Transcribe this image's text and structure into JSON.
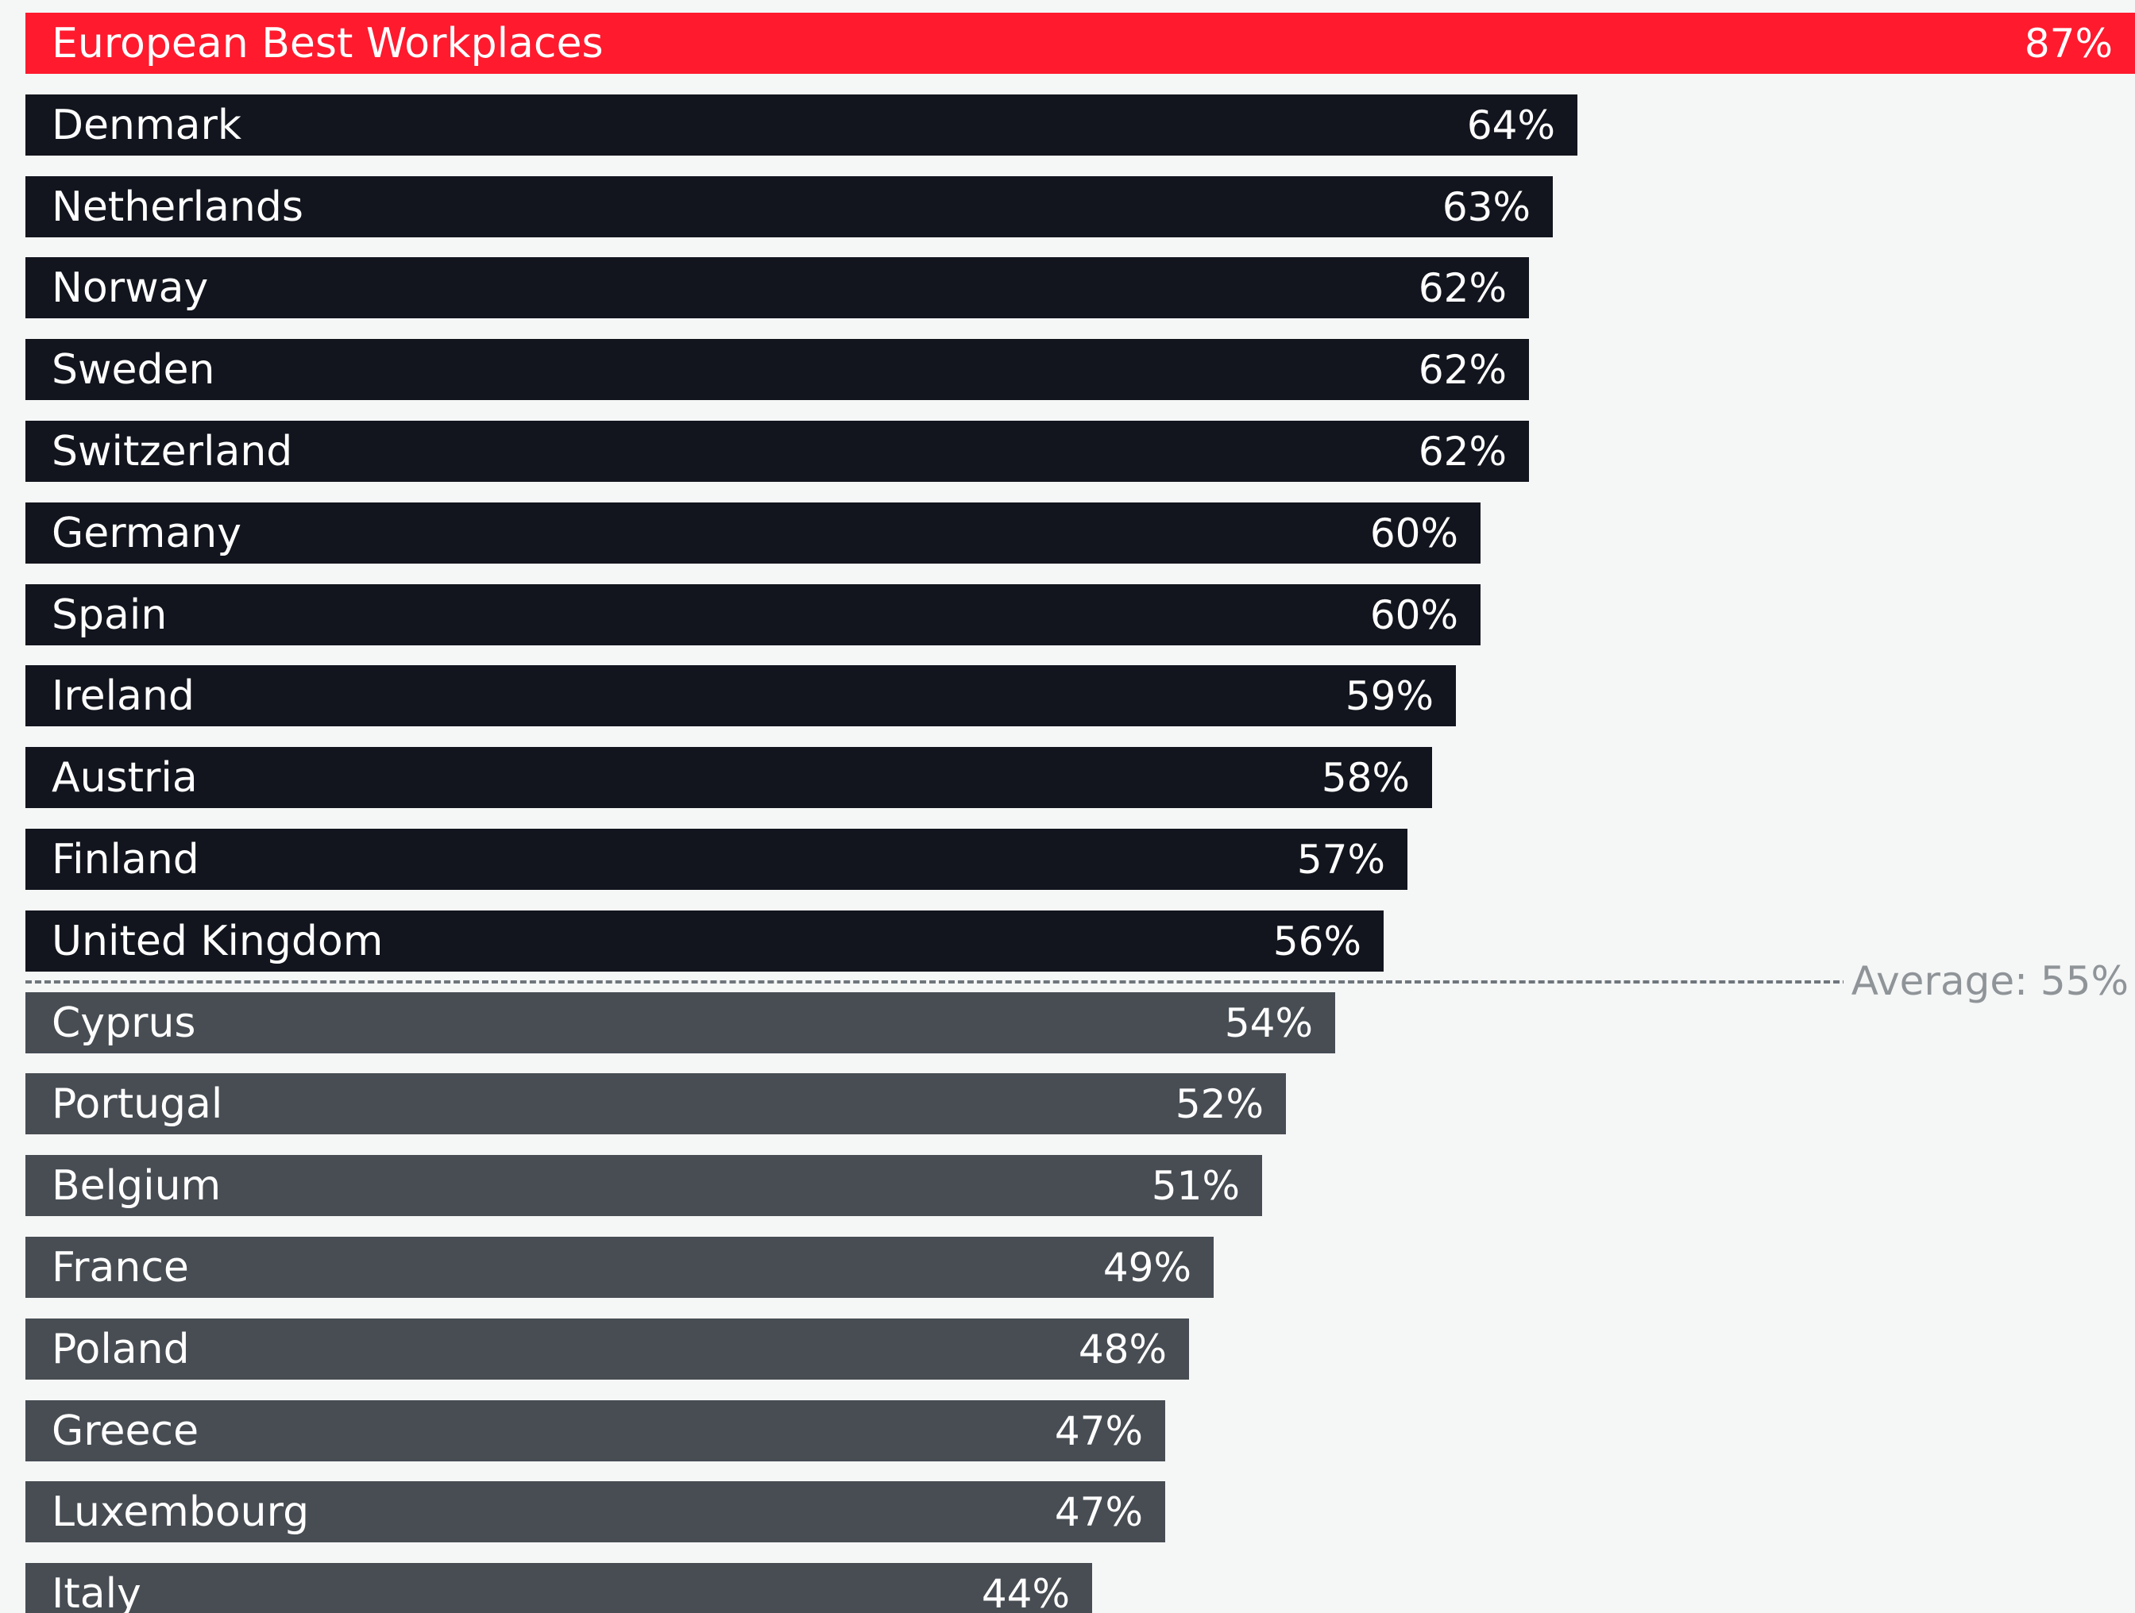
{
  "chart_data": {
    "type": "bar",
    "orientation": "horizontal",
    "value_suffix": "%",
    "categories": [
      "European Best Workplaces",
      "Denmark",
      "Netherlands",
      "Norway",
      "Sweden",
      "Switzerland",
      "Germany",
      "Spain",
      "Ireland",
      "Austria",
      "Finland",
      "United Kingdom",
      "Cyprus",
      "Portugal",
      "Belgium",
      "France",
      "Poland",
      "Greece",
      "Luxembourg",
      "Italy"
    ],
    "values": [
      87,
      64,
      63,
      62,
      62,
      62,
      60,
      60,
      59,
      58,
      57,
      56,
      54,
      52,
      51,
      49,
      48,
      47,
      47,
      44
    ],
    "value_labels": [
      "87%",
      "64%",
      "63%",
      "62%",
      "62%",
      "62%",
      "60%",
      "60%",
      "59%",
      "58%",
      "57%",
      "56%",
      "54%",
      "52%",
      "51%",
      "49%",
      "48%",
      "47%",
      "47%",
      "44%"
    ],
    "bar_groups": [
      "highlight",
      "above",
      "above",
      "above",
      "above",
      "above",
      "above",
      "above",
      "above",
      "above",
      "above",
      "above",
      "below",
      "below",
      "below",
      "below",
      "below",
      "below",
      "below",
      "below"
    ],
    "average": {
      "value": 55,
      "label": "Average: 55%"
    },
    "xlim": [
      0,
      87
    ],
    "grid": false,
    "legend": "none"
  },
  "colors": {
    "highlight": "#ff1a2e",
    "above": "#12151d",
    "below": "#474d53",
    "average_line": "#6f767c",
    "average_label": "#8f9498",
    "background": "#f5f6f6",
    "bar_text": "#ffffff"
  }
}
